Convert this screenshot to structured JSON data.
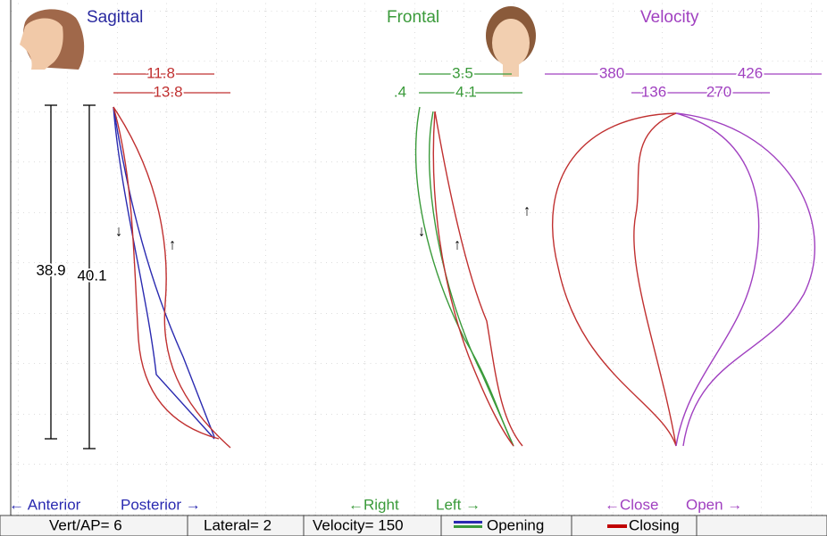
{
  "panels": [
    {
      "title": "Sagittal"
    },
    {
      "title": "Frontal"
    },
    {
      "title": "Velocity"
    }
  ],
  "measurements": {
    "sagittal_top": "11.8",
    "sagittal_bottom": "13.8",
    "frontal_top": "3.5",
    "frontal_left": ".4",
    "frontal_bottom": "4.1",
    "velocity_top_left": "380",
    "velocity_top_right": "426",
    "velocity_bottom_left": "136",
    "velocity_bottom_right": "270",
    "vertical_1": "38.9",
    "vertical_2": "40.1"
  },
  "direction_markers": [
    "↓",
    "↑",
    "↓",
    "↑",
    "↑"
  ],
  "axis_labels": {
    "sagittal_left": "← Anterior",
    "sagittal_right": "Posterior →",
    "frontal_left": "←Right",
    "frontal_right": "Left →",
    "velocity_left": "←Close",
    "velocity_right": "Open →"
  },
  "status_bar": {
    "vert_ap": "Vert/AP= 6",
    "lateral": "Lateral= 2",
    "velocity": "Velocity= 150",
    "opening": "Opening",
    "closing": "Closing"
  }
}
